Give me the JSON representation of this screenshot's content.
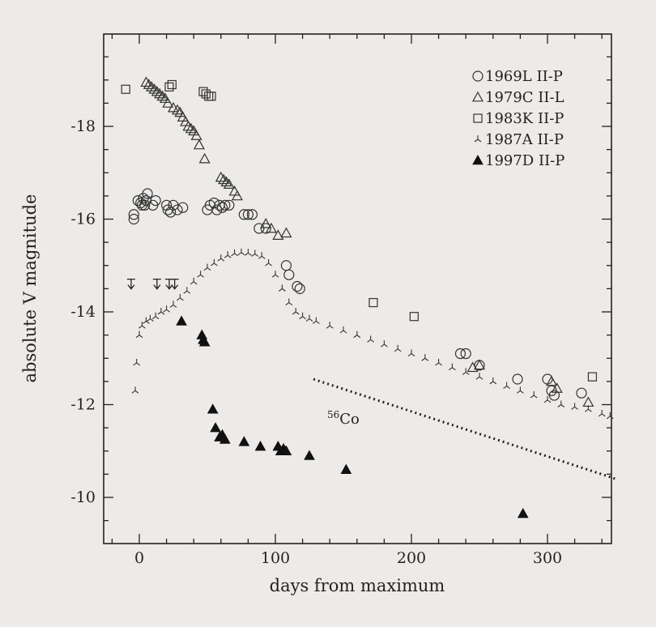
{
  "chart_data": {
    "type": "scatter",
    "xlabel": "days from maximum",
    "ylabel": "absolute V magnitude",
    "xlim": [
      -25,
      350
    ],
    "ylim": [
      -19.8,
      -9.1
    ],
    "y_inverted": true,
    "grid": false,
    "legend_position": "top-right",
    "x_ticks": [
      0,
      100,
      200,
      300
    ],
    "x_tick_labels": [
      "0",
      "100",
      "200",
      "300"
    ],
    "y_ticks": [
      -18,
      -16,
      -14,
      -12,
      -10
    ],
    "y_tick_labels": [
      "-18",
      "-16",
      "-14",
      "-12",
      "-10"
    ],
    "series": [
      {
        "name": "1969L II-P",
        "marker": "open-circle",
        "x": [
          -4,
          -4,
          -1,
          1,
          2,
          3,
          4,
          5,
          6,
          10,
          12,
          20,
          21,
          23,
          25,
          28,
          32,
          50,
          52,
          55,
          57,
          59,
          61,
          63,
          66,
          77,
          80,
          83,
          88,
          93,
          108,
          110,
          116,
          118,
          236,
          240,
          250,
          278,
          300,
          303,
          305,
          325
        ],
        "y": [
          -16.1,
          -16.0,
          -16.4,
          -16.35,
          -16.3,
          -16.45,
          -16.3,
          -16.4,
          -16.55,
          -16.3,
          -16.4,
          -16.3,
          -16.2,
          -16.15,
          -16.3,
          -16.2,
          -16.25,
          -16.2,
          -16.3,
          -16.35,
          -16.2,
          -16.3,
          -16.25,
          -16.3,
          -16.3,
          -16.1,
          -16.1,
          -16.1,
          -15.8,
          -15.8,
          -15.0,
          -14.8,
          -14.55,
          -14.5,
          -13.1,
          -13.1,
          -12.85,
          -12.55,
          -12.55,
          -12.3,
          -12.2,
          -12.25
        ]
      },
      {
        "name": "1979C II-L",
        "marker": "open-triangle",
        "x": [
          5,
          7,
          9,
          11,
          13,
          15,
          17,
          19,
          21,
          25,
          28,
          30,
          32,
          34,
          36,
          38,
          40,
          42,
          44,
          48,
          60,
          62,
          64,
          66,
          70,
          72,
          93,
          97,
          102,
          108,
          245,
          250,
          303,
          307,
          330
        ],
        "y": [
          -18.95,
          -18.9,
          -18.85,
          -18.8,
          -18.75,
          -18.7,
          -18.65,
          -18.6,
          -18.5,
          -18.4,
          -18.35,
          -18.3,
          -18.2,
          -18.1,
          -18.0,
          -17.95,
          -17.9,
          -17.8,
          -17.6,
          -17.3,
          -16.9,
          -16.85,
          -16.8,
          -16.75,
          -16.6,
          -16.5,
          -15.9,
          -15.8,
          -15.65,
          -15.7,
          -12.8,
          -12.85,
          -12.5,
          -12.35,
          -12.05
        ]
      },
      {
        "name": "1983K II-P",
        "marker": "open-square",
        "x": [
          -10,
          22,
          24,
          47,
          49,
          51,
          53,
          172,
          202,
          333
        ],
        "y": [
          -18.8,
          -18.85,
          -18.9,
          -18.75,
          -18.7,
          -18.65,
          -18.65,
          -14.2,
          -13.9,
          -12.6
        ]
      },
      {
        "name": "1987A II-P",
        "marker": "tristar",
        "x": [
          -3,
          -2,
          0,
          2,
          5,
          8,
          12,
          16,
          20,
          25,
          30,
          35,
          40,
          45,
          50,
          55,
          60,
          65,
          70,
          75,
          80,
          85,
          90,
          95,
          100,
          105,
          110,
          115,
          120,
          125,
          130,
          140,
          150,
          160,
          170,
          180,
          190,
          200,
          210,
          220,
          230,
          240,
          250,
          260,
          270,
          280,
          290,
          300,
          310,
          320,
          330,
          340,
          346
        ],
        "y": [
          -12.3,
          -12.9,
          -13.5,
          -13.7,
          -13.8,
          -13.85,
          -13.9,
          -14.0,
          -14.05,
          -14.15,
          -14.3,
          -14.45,
          -14.65,
          -14.8,
          -14.95,
          -15.05,
          -15.15,
          -15.22,
          -15.26,
          -15.28,
          -15.27,
          -15.25,
          -15.2,
          -15.05,
          -14.8,
          -14.5,
          -14.2,
          -14.0,
          -13.9,
          -13.85,
          -13.8,
          -13.7,
          -13.6,
          -13.5,
          -13.4,
          -13.3,
          -13.2,
          -13.1,
          -13.0,
          -12.9,
          -12.8,
          -12.7,
          -12.6,
          -12.5,
          -12.4,
          -12.3,
          -12.2,
          -12.1,
          -12.0,
          -11.95,
          -11.9,
          -11.8,
          -11.75
        ]
      },
      {
        "name": "1997D II-P",
        "marker": "filled-triangle",
        "x": [
          31,
          46,
          47,
          48,
          54,
          56,
          59,
          61,
          63,
          77,
          89,
          102,
          104,
          106,
          108,
          125,
          152,
          282
        ],
        "y": [
          -13.8,
          -13.5,
          -13.4,
          -13.35,
          -11.9,
          -11.5,
          -11.3,
          -11.35,
          -11.25,
          -11.2,
          -11.1,
          -11.1,
          -11.0,
          -11.05,
          -11.0,
          -10.9,
          -10.6,
          -9.65
        ]
      }
    ],
    "upper_limits": {
      "series": "1987A II-P",
      "x": [
        -6,
        13,
        22,
        26
      ],
      "y": [
        -14.6,
        -14.6,
        -14.6,
        -14.6
      ]
    },
    "reference_line": {
      "label_super": "56",
      "label": "Co",
      "x": [
        128,
        350
      ],
      "y": [
        -12.55,
        -10.4
      ],
      "style": "dotted"
    }
  }
}
